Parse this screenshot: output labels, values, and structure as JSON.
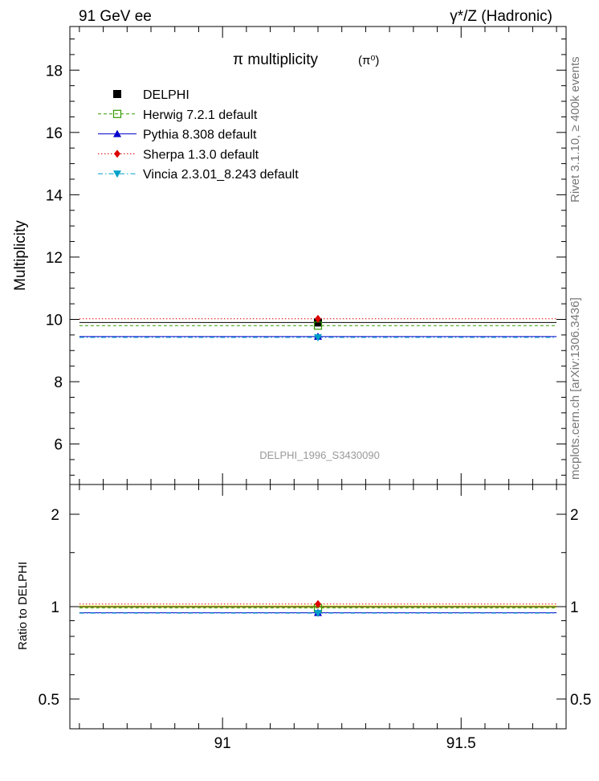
{
  "header": {
    "left": "91 GeV ee",
    "right": "γ*/Z (Hadronic)"
  },
  "side_labels": {
    "rivet": "Rivet 3.1.10, ≥ 400k events",
    "mcplots": "mcplots.cern.ch [arXiv:1306.3436]"
  },
  "chart_data": [
    {
      "type": "scatter",
      "title": "π multiplicity",
      "title_suffix": "(π⁰)",
      "ylabel": "Multiplicity",
      "watermark": "DELPHI_1996_S3430090",
      "xlim": [
        90.68,
        91.72
      ],
      "ylim": [
        4.7,
        19.4
      ],
      "yticks": [
        6,
        8,
        10,
        12,
        14,
        16,
        18
      ],
      "legend_placement": "top-left",
      "series": [
        {
          "name": "DELPHI",
          "x": 91.2,
          "y": 9.9,
          "yerr": 0.1,
          "color": "#000000",
          "marker": "square-filled",
          "line": "none"
        },
        {
          "name": "Herwig 7.2.1 default",
          "x": 91.2,
          "y": 9.8,
          "color": "#339900",
          "marker": "square-open",
          "line": "dashed"
        },
        {
          "name": "Pythia 8.308 default",
          "x": 91.2,
          "y": 9.45,
          "color": "#0000cc",
          "marker": "triangle-up",
          "line": "solid"
        },
        {
          "name": "Sherpa 1.3.0 default",
          "x": 91.2,
          "y": 10.02,
          "color": "#dd0000",
          "marker": "diamond",
          "line": "dotted"
        },
        {
          "name": "Vincia 2.3.01_8.243 default",
          "x": 91.2,
          "y": 9.42,
          "color": "#00a0c8",
          "marker": "triangle-down",
          "line": "dashdot"
        }
      ]
    },
    {
      "type": "scatter",
      "ylabel": "Ratio to DELPHI",
      "ylim": [
        0.4,
        2.5
      ],
      "scale": "log",
      "yticks": [
        0.5,
        1,
        2
      ],
      "xticks": [
        91,
        91.5
      ],
      "xlim": [
        90.68,
        91.72
      ],
      "band": {
        "low": 0.99,
        "high": 1.01,
        "color": "#ffff66"
      },
      "series": [
        {
          "name": "DELPHI",
          "ratio": 1.0,
          "color": "#000000",
          "line": "solid"
        },
        {
          "name": "Herwig 7.2.1 default",
          "ratio": 0.99,
          "color": "#339900",
          "marker": "square-open",
          "line": "dashed"
        },
        {
          "name": "Pythia 8.308 default",
          "ratio": 0.955,
          "color": "#0000cc",
          "marker": "triangle-up",
          "line": "solid"
        },
        {
          "name": "Sherpa 1.3.0 default",
          "ratio": 1.02,
          "color": "#dd0000",
          "marker": "diamond",
          "line": "dotted"
        },
        {
          "name": "Vincia 2.3.01_8.243 default",
          "ratio": 0.952,
          "color": "#00a0c8",
          "marker": "triangle-down",
          "line": "dashdot"
        }
      ]
    }
  ]
}
